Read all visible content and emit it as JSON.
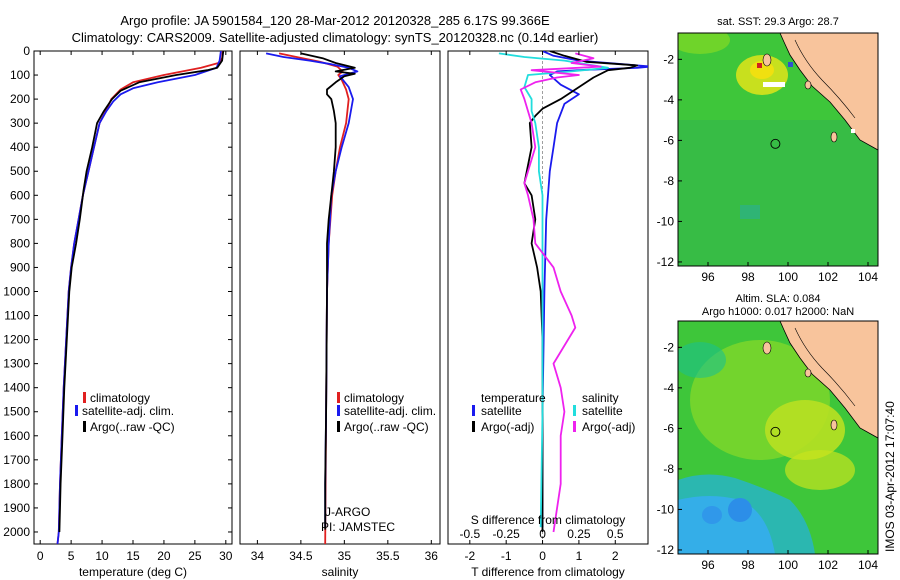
{
  "header": {
    "line1": "Argo profile: JA 5901584_120 28-Mar-2012 20120328_285 6.17S 99.366E",
    "line2": "Climatology: CARS2009. Satellite-adjusted climatology: synTS_20120328.nc (0.14d earlier)"
  },
  "colors": {
    "climatology": "#e02020",
    "satellite": "#1a1aee",
    "argo": "#000000",
    "salinity_sat": "#22dddd",
    "salinity_argo": "#ee22ee",
    "land": "#f8c49c"
  },
  "depth_axis": {
    "ylim": [
      0,
      2050
    ],
    "ticks": [
      0,
      100,
      200,
      300,
      400,
      500,
      600,
      700,
      800,
      900,
      1000,
      1100,
      1200,
      1300,
      1400,
      1500,
      1600,
      1700,
      1800,
      1900,
      2000
    ]
  },
  "chart_data": [
    {
      "type": "line",
      "id": "temperature",
      "xlabel": "temperature (deg C)",
      "xlim": [
        -1,
        31
      ],
      "xticks": [
        0,
        5,
        10,
        15,
        20,
        25,
        30
      ],
      "legend": [
        "climatology",
        "satellite-adj. clim.",
        "Argo(..raw -QC)"
      ],
      "series": [
        {
          "name": "climatology",
          "points": [
            [
              29.5,
              0
            ],
            [
              29.4,
              30
            ],
            [
              28.8,
              50
            ],
            [
              26,
              70
            ],
            [
              20,
              100
            ],
            [
              15,
              130
            ],
            [
              13,
              160
            ],
            [
              11.5,
              200
            ],
            [
              10.6,
              250
            ],
            [
              9.6,
              300
            ],
            [
              8.7,
              400
            ],
            [
              7.8,
              500
            ],
            [
              6.9,
              600
            ],
            [
              6.2,
              700
            ],
            [
              5.5,
              800
            ],
            [
              5,
              900
            ],
            [
              4.6,
              1000
            ],
            [
              4.2,
              1200
            ],
            [
              3.8,
              1400
            ],
            [
              3.5,
              1600
            ],
            [
              3.2,
              1800
            ],
            [
              3,
              2000
            ],
            [
              2.8,
              2050
            ]
          ]
        },
        {
          "name": "satellite-adj. clim.",
          "points": [
            [
              29.2,
              0
            ],
            [
              29,
              40
            ],
            [
              28.5,
              70
            ],
            [
              25,
              100
            ],
            [
              19,
              130
            ],
            [
              15,
              155
            ],
            [
              13,
              180
            ],
            [
              11.8,
              210
            ],
            [
              10.7,
              250
            ],
            [
              9.6,
              300
            ],
            [
              8.7,
              400
            ],
            [
              7.8,
              500
            ],
            [
              6.9,
              600
            ],
            [
              6.2,
              700
            ],
            [
              5.5,
              800
            ],
            [
              5,
              900
            ],
            [
              4.6,
              1000
            ],
            [
              4.2,
              1200
            ],
            [
              3.8,
              1400
            ],
            [
              3.5,
              1600
            ],
            [
              3.2,
              1800
            ],
            [
              3,
              2000
            ],
            [
              2.8,
              2050
            ]
          ]
        },
        {
          "name": "Argo(..raw -QC)",
          "points": [
            [
              29.6,
              0
            ],
            [
              29.4,
              40
            ],
            [
              28.6,
              70
            ],
            [
              27,
              80
            ],
            [
              22,
              100
            ],
            [
              16,
              130
            ],
            [
              13,
              165
            ],
            [
              11.6,
              200
            ],
            [
              10.3,
              250
            ],
            [
              9.2,
              300
            ],
            [
              8.4,
              400
            ],
            [
              7.5,
              500
            ],
            [
              7,
              580
            ],
            [
              6.8,
              620
            ],
            [
              6.4,
              700
            ],
            [
              5.8,
              800
            ],
            [
              5.1,
              900
            ],
            [
              4.7,
              1000
            ],
            [
              4.3,
              1200
            ],
            [
              3.9,
              1400
            ],
            [
              3.6,
              1600
            ],
            [
              3.3,
              1800
            ],
            [
              3.1,
              2000
            ]
          ]
        }
      ]
    },
    {
      "type": "line",
      "id": "salinity",
      "xlabel": "salinity",
      "xlim": [
        33.8,
        36.1
      ],
      "xticks": [
        34,
        34.5,
        35,
        35.5,
        36
      ],
      "legend": [
        "climatology",
        "satellite-adj. clim.",
        "Argo(..raw -QC)"
      ],
      "annotations": [
        "J-ARGO",
        "PI: JAMSTEC"
      ],
      "series": [
        {
          "name": "climatology",
          "points": [
            [
              34.25,
              10
            ],
            [
              34.45,
              25
            ],
            [
              34.72,
              45
            ],
            [
              34.92,
              65
            ],
            [
              34.98,
              85
            ],
            [
              34.93,
              100
            ],
            [
              34.97,
              120
            ],
            [
              35.02,
              160
            ],
            [
              35.05,
              200
            ],
            [
              35.02,
              300
            ],
            [
              34.95,
              400
            ],
            [
              34.9,
              500
            ],
            [
              34.86,
              600
            ],
            [
              34.82,
              800
            ],
            [
              34.8,
              1000
            ],
            [
              34.79,
              1500
            ],
            [
              34.78,
              2050
            ]
          ]
        },
        {
          "name": "satellite-adj. clim.",
          "points": [
            [
              34.1,
              10
            ],
            [
              34.3,
              25
            ],
            [
              34.6,
              40
            ],
            [
              34.85,
              55
            ],
            [
              35.05,
              70
            ],
            [
              35.15,
              85
            ],
            [
              34.95,
              105
            ],
            [
              35.05,
              150
            ],
            [
              35.1,
              200
            ],
            [
              35.05,
              300
            ],
            [
              34.97,
              400
            ],
            [
              34.9,
              500
            ],
            [
              34.85,
              600
            ],
            [
              34.82,
              800
            ],
            [
              34.8,
              1000
            ],
            [
              34.79,
              1500
            ],
            [
              34.78,
              1800
            ],
            [
              34.78,
              1980
            ]
          ]
        },
        {
          "name": "Argo(..raw -QC)",
          "points": [
            [
              34.5,
              10
            ],
            [
              34.75,
              30
            ],
            [
              34.9,
              50
            ],
            [
              35.12,
              70
            ],
            [
              34.9,
              85
            ],
            [
              35.12,
              95
            ],
            [
              35.0,
              105
            ],
            [
              34.9,
              130
            ],
            [
              34.8,
              160
            ],
            [
              34.8,
              180
            ],
            [
              34.85,
              200
            ],
            [
              34.88,
              250
            ],
            [
              34.9,
              300
            ],
            [
              34.9,
              400
            ],
            [
              34.88,
              500
            ],
            [
              34.85,
              600
            ],
            [
              34.82,
              700
            ],
            [
              34.8,
              800
            ],
            [
              34.8,
              1000
            ],
            [
              34.79,
              1500
            ],
            [
              34.78,
              1800
            ],
            [
              34.78,
              1990
            ]
          ]
        }
      ]
    },
    {
      "type": "line",
      "id": "difference",
      "xlabel": "T difference from climatology",
      "xlabel_top": "S difference from climatology",
      "xlim": [
        -2.6,
        2.9
      ],
      "xticks": [
        -2,
        -1,
        0,
        1,
        2
      ],
      "xticks_s_positions": [
        -2,
        -1,
        0,
        1,
        2
      ],
      "xticks_s_labels": [
        "-0.5",
        "-0.25",
        "0",
        "0.25",
        "0.5"
      ],
      "legend": {
        "temperature_header": "temperature",
        "salinity_header": "salinity",
        "items": [
          "satellite",
          "Argo(-adj)",
          "satellite",
          "Argo(-adj)"
        ]
      },
      "series": [
        {
          "name": "T satellite",
          "points": [
            [
              0,
              0
            ],
            [
              0.3,
              20
            ],
            [
              1,
              40
            ],
            [
              2.2,
              55
            ],
            [
              3,
              65
            ],
            [
              2.6,
              70
            ],
            [
              1.2,
              78
            ],
            [
              0.4,
              85
            ],
            [
              0.2,
              100
            ],
            [
              0.5,
              140
            ],
            [
              1.0,
              180
            ],
            [
              0.6,
              220
            ],
            [
              0.4,
              300
            ],
            [
              0.3,
              400
            ],
            [
              0.2,
              500
            ],
            [
              0.1,
              700
            ],
            [
              0.05,
              1000
            ],
            [
              0,
              1500
            ],
            [
              0,
              1980
            ]
          ]
        },
        {
          "name": "T Argo(-adj)",
          "points": [
            [
              0.2,
              0
            ],
            [
              0.6,
              20
            ],
            [
              1.2,
              45
            ],
            [
              2.6,
              60
            ],
            [
              2.4,
              70
            ],
            [
              1.8,
              80
            ],
            [
              1.4,
              110
            ],
            [
              1.0,
              150
            ],
            [
              0.5,
              200
            ],
            [
              0,
              240
            ],
            [
              -0.2,
              270
            ],
            [
              -0.35,
              300
            ],
            [
              -0.3,
              400
            ],
            [
              -0.5,
              550
            ],
            [
              -0.3,
              600
            ],
            [
              -0.2,
              700
            ],
            [
              -0.3,
              800
            ],
            [
              -0.15,
              900
            ],
            [
              -0.05,
              1000
            ],
            [
              0,
              1200
            ],
            [
              0,
              1500
            ],
            [
              0,
              2000
            ]
          ]
        },
        {
          "name": "S satellite",
          "points": [
            [
              -1.2,
              10
            ],
            [
              -0.5,
              25
            ],
            [
              0.6,
              40
            ],
            [
              1.4,
              60
            ],
            [
              1.8,
              70
            ],
            [
              0.8,
              85
            ],
            [
              -0.4,
              100
            ],
            [
              -0.5,
              150
            ],
            [
              -0.3,
              200
            ],
            [
              -0.3,
              250
            ],
            [
              -0.2,
              300
            ],
            [
              -0.1,
              400
            ],
            [
              -0.1,
              500
            ],
            [
              0,
              600
            ],
            [
              0,
              800
            ],
            [
              0,
              1000
            ],
            [
              0,
              1500
            ],
            [
              -0.05,
              1980
            ]
          ]
        },
        {
          "name": "S Argo(-adj)",
          "points": [
            [
              0.9,
              10
            ],
            [
              1.4,
              30
            ],
            [
              0.8,
              50
            ],
            [
              1.6,
              65
            ],
            [
              -0.3,
              80
            ],
            [
              1.0,
              100
            ],
            [
              0.4,
              110
            ],
            [
              -0.2,
              130
            ],
            [
              -0.6,
              160
            ],
            [
              -0.5,
              200
            ],
            [
              -0.4,
              250
            ],
            [
              -0.3,
              300
            ],
            [
              -0.2,
              400
            ],
            [
              -0.5,
              550
            ],
            [
              -0.4,
              600
            ],
            [
              -0.25,
              700
            ],
            [
              -0.2,
              800
            ],
            [
              0.3,
              900
            ],
            [
              0.5,
              1000
            ],
            [
              0.8,
              1100
            ],
            [
              0.9,
              1150
            ],
            [
              0.3,
              1300
            ],
            [
              0.5,
              1400
            ],
            [
              0.6,
              1500
            ],
            [
              0.5,
              1600
            ],
            [
              0.5,
              1700
            ],
            [
              0.5,
              1800
            ],
            [
              0.4,
              1900
            ],
            [
              0.3,
              2000
            ]
          ]
        }
      ]
    },
    {
      "type": "heatmap",
      "id": "sst_map",
      "title": "sat. SST: 29.3  Argo: 28.7",
      "xticks": [
        96,
        98,
        100,
        102,
        104
      ],
      "yticks": [
        -2,
        -4,
        -6,
        -8,
        -10,
        -12
      ],
      "xlim": [
        94.5,
        104.5
      ],
      "ylim": [
        -12.2,
        -0.7
      ],
      "marker": [
        99.37,
        -6.17
      ]
    },
    {
      "type": "heatmap",
      "id": "sla_map",
      "title": "Altim. SLA: 0.084",
      "subtitle": "Argo h1000: 0.017 h2000: NaN",
      "xticks": [
        96,
        98,
        100,
        102,
        104
      ],
      "yticks": [
        -2,
        -4,
        -6,
        -8,
        -10,
        -12
      ],
      "xlim": [
        94.5,
        104.5
      ],
      "ylim": [
        -12.2,
        -0.7
      ],
      "marker": [
        99.37,
        -6.17
      ]
    }
  ],
  "side_stamp": "IMOS 03-Apr-2012 17:07:40"
}
